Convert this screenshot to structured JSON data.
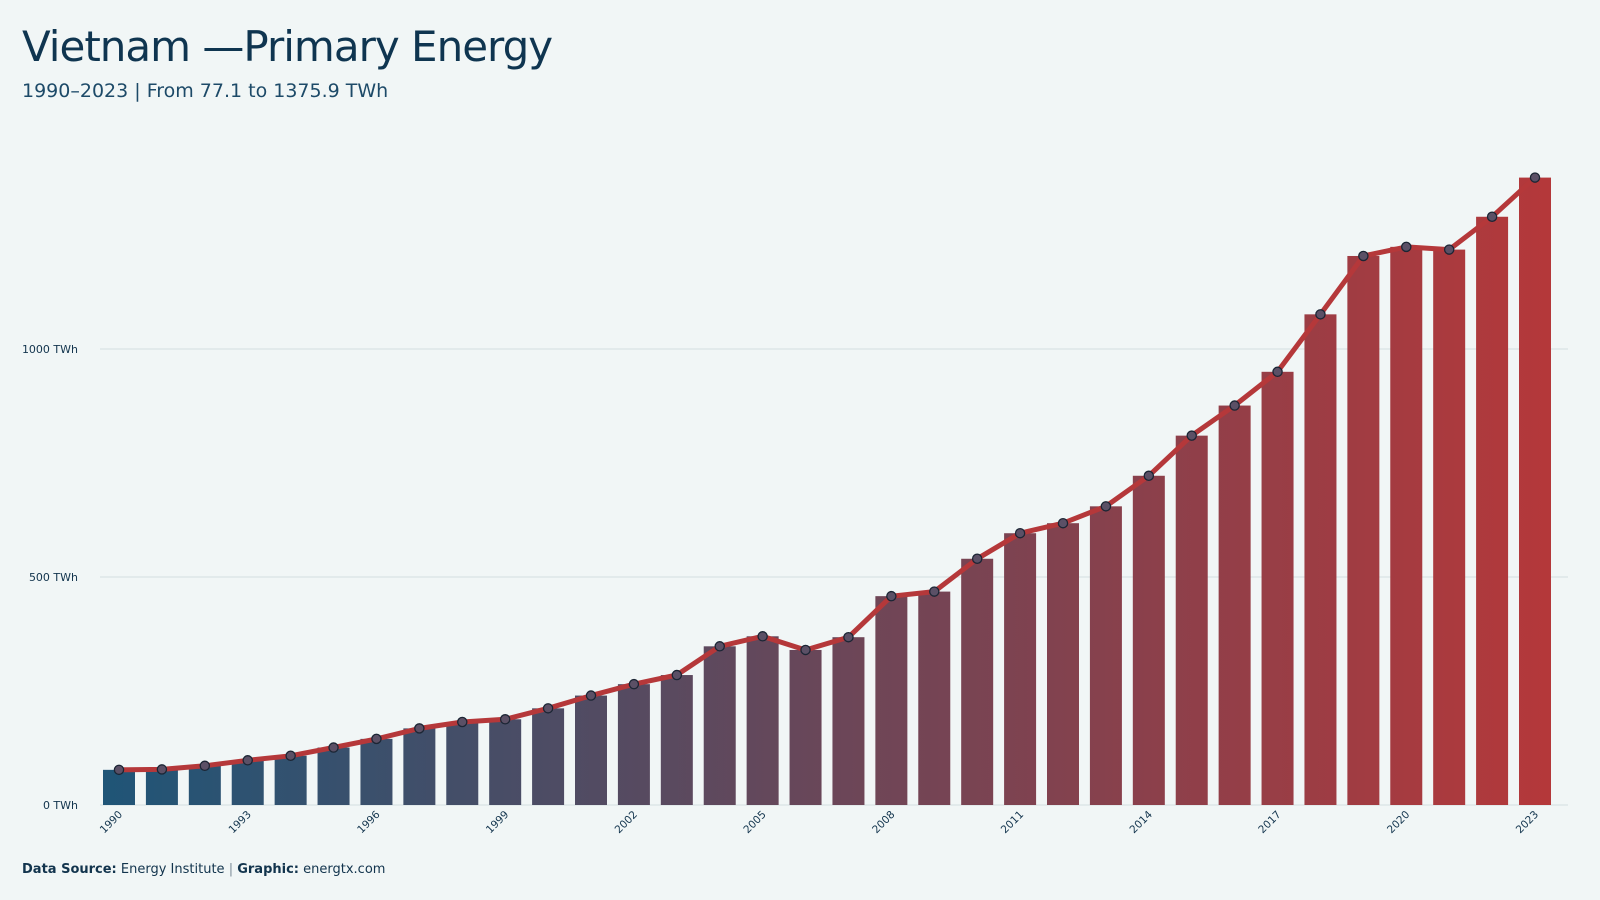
{
  "header": {
    "title": "Vietnam —Primary Energy",
    "subtitle": "1990–2023 | From 77.1 to 1375.9 TWh"
  },
  "footer": {
    "source_label": "Data Source:",
    "source_value": "Energy Institute",
    "separator": "|",
    "graphic_label": "Graphic:",
    "graphic_value": "energtx.com"
  },
  "colors": {
    "start": "#1f5577",
    "end": "#b5383a",
    "line": "#b5383a",
    "grid": "#d3dde0",
    "background": "#f1f6f6"
  },
  "chart_data": {
    "type": "bar",
    "overlay": "line-with-markers",
    "x": [
      1990,
      1991,
      1992,
      1993,
      1994,
      1995,
      1996,
      1997,
      1998,
      1999,
      2000,
      2001,
      2002,
      2003,
      2004,
      2005,
      2006,
      2007,
      2008,
      2009,
      2010,
      2011,
      2012,
      2013,
      2014,
      2015,
      2016,
      2017,
      2018,
      2019,
      2020,
      2021,
      2022,
      2023
    ],
    "values": [
      77.1,
      78,
      86,
      98,
      108,
      126,
      145,
      168,
      182,
      188,
      212,
      240,
      265,
      285,
      348,
      370,
      340,
      368,
      458,
      468,
      540,
      596,
      618,
      655,
      722,
      810,
      876,
      950,
      1076,
      1204,
      1224,
      1218,
      1290,
      1375.9
    ],
    "unit": "TWh",
    "y_ticks": [
      {
        "value": 0,
        "label": "0 TWh"
      },
      {
        "value": 500,
        "label": "500 TWh"
      },
      {
        "value": 1000,
        "label": "1000 TWh"
      }
    ],
    "x_tick_labels": [
      "1990",
      "1993",
      "1996",
      "1999",
      "2002",
      "2005",
      "2008",
      "2011",
      "2014",
      "2017",
      "2020",
      "2023"
    ],
    "ylim": [
      0,
      1400
    ],
    "grid": "horizontal"
  }
}
